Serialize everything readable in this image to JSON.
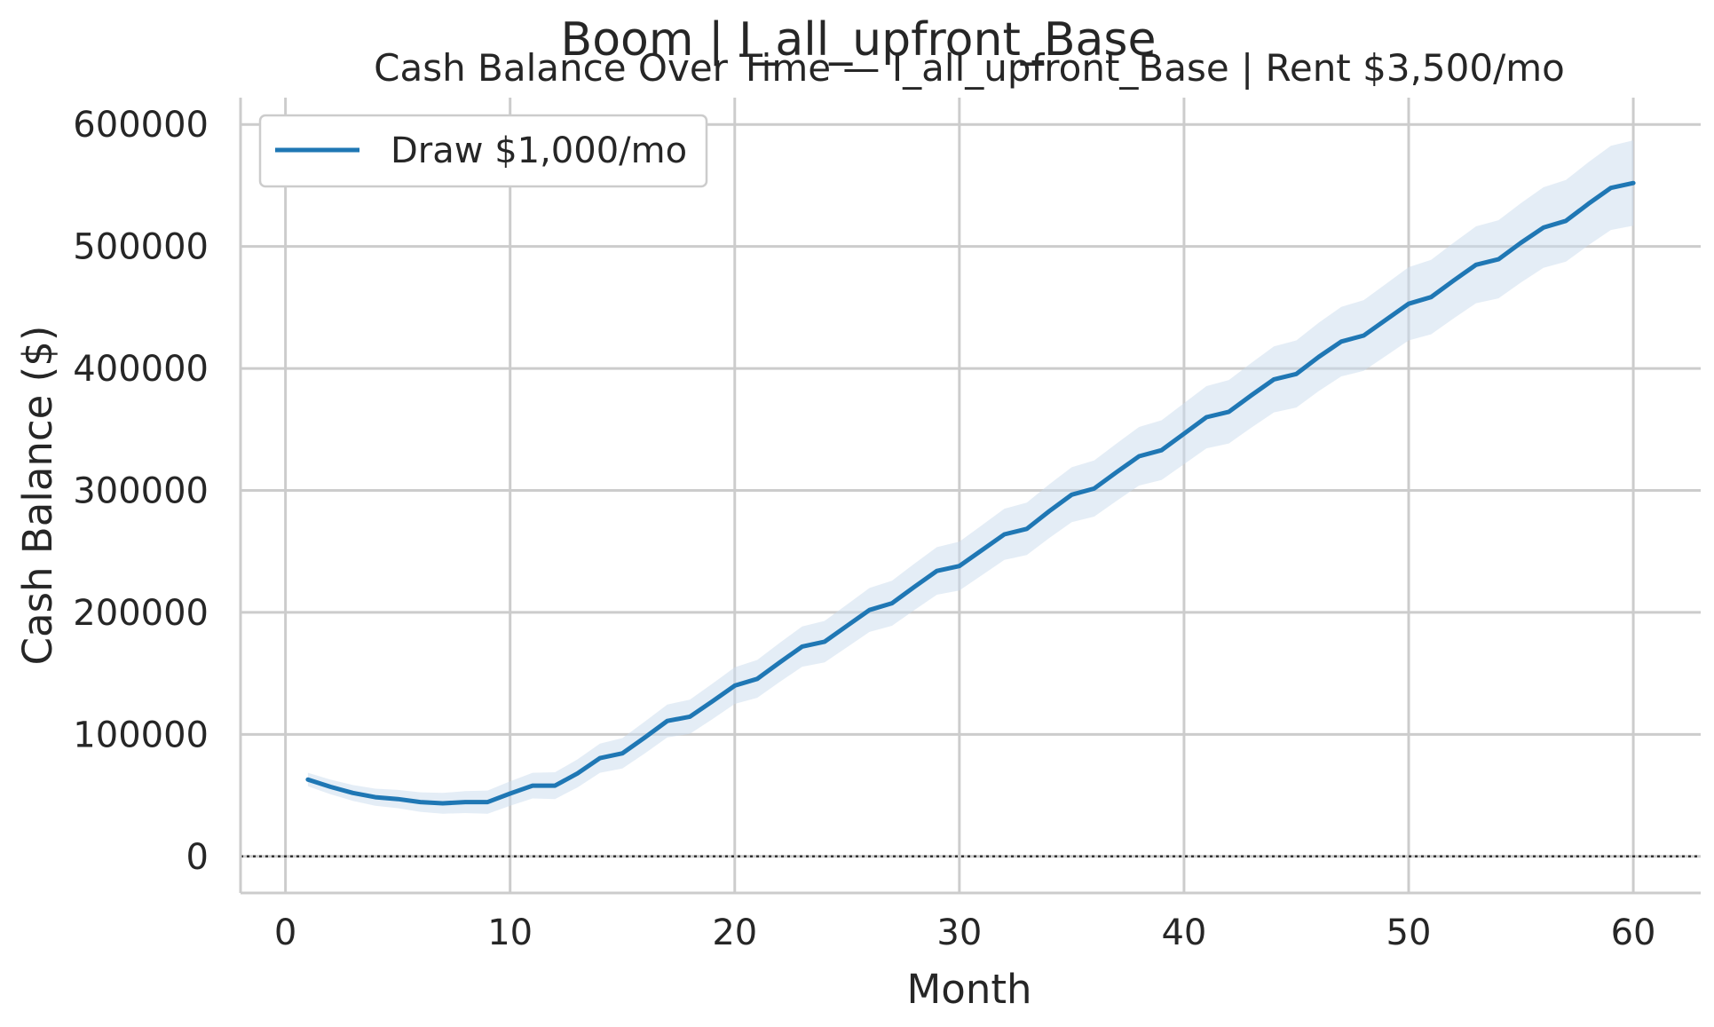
{
  "figure": {
    "suptitle": "Boom | I_all_upfront_Base"
  },
  "chart_data": {
    "type": "line",
    "title": "Cash Balance Over Time — I_all_upfront_Base | Rent $3,500/mo",
    "xlabel": "Month",
    "ylabel": "Cash Balance ($)",
    "xlim": [
      -2,
      63
    ],
    "ylim": [
      -30000,
      622000
    ],
    "xticks": [
      0,
      10,
      20,
      30,
      40,
      50,
      60
    ],
    "yticks": [
      0,
      100000,
      200000,
      300000,
      400000,
      500000,
      600000
    ],
    "grid": true,
    "legend_position": "top-left",
    "reference_line": {
      "y": 0,
      "style": "dotted",
      "color": "#333333"
    },
    "colors": {
      "line": "#1f77b4",
      "band": "#c9dcee",
      "grid": "#cccccc",
      "spine": "#cccccc"
    },
    "series": [
      {
        "name": "Draw $1,000/mo",
        "x": [
          1,
          2,
          3,
          4,
          5,
          6,
          7,
          8,
          9,
          10,
          11,
          12,
          13,
          14,
          15,
          16,
          17,
          18,
          19,
          20,
          21,
          22,
          23,
          24,
          25,
          26,
          27,
          28,
          29,
          30,
          31,
          32,
          33,
          34,
          35,
          36,
          37,
          38,
          39,
          40,
          41,
          42,
          43,
          44,
          45,
          46,
          47,
          48,
          49,
          50,
          51,
          52,
          53,
          54,
          55,
          56,
          57,
          58,
          59,
          60
        ],
        "y": [
          63000,
          57000,
          52000,
          48500,
          47000,
          44500,
          43500,
          44500,
          44500,
          51500,
          58000,
          58000,
          68000,
          80500,
          84500,
          97500,
          111000,
          114500,
          127000,
          140000,
          145500,
          159000,
          172000,
          176000,
          189000,
          202000,
          207500,
          221000,
          234000,
          238000,
          251000,
          264000,
          268500,
          283000,
          296500,
          301500,
          315000,
          328000,
          333000,
          346500,
          360000,
          364500,
          378000,
          391000,
          395500,
          409500,
          422000,
          427000,
          440000,
          453000,
          458500,
          472000,
          485000,
          489500,
          503000,
          515500,
          521000,
          535000,
          548000,
          552000
        ]
      }
    ]
  }
}
